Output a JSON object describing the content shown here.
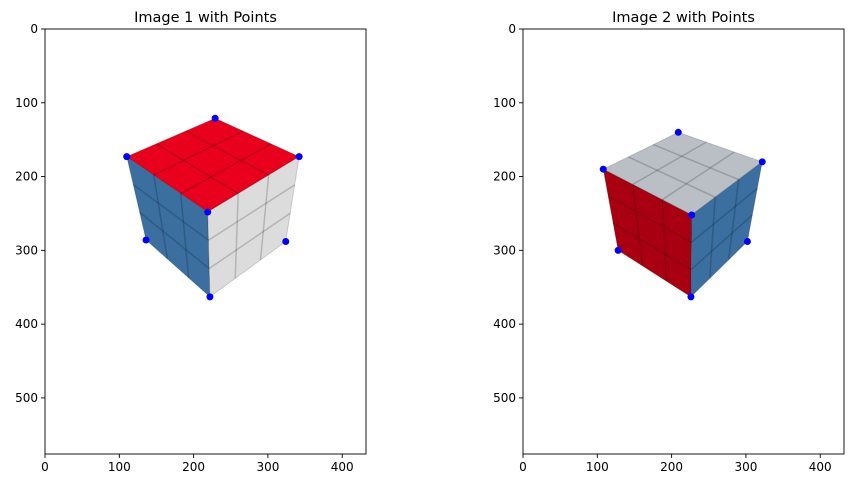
{
  "chart_data": [
    {
      "type": "scatter",
      "title": "Image 1 with Points",
      "xlim": [
        0,
        432
      ],
      "ylim": [
        576,
        0
      ],
      "y_inverted": true,
      "x_ticks": [
        0,
        100,
        200,
        300,
        400
      ],
      "y_ticks": [
        0,
        100,
        200,
        300,
        400,
        500
      ],
      "x_tick_labels": [
        "0",
        "100",
        "200",
        "300",
        "400"
      ],
      "y_tick_labels": [
        "0",
        "100",
        "200",
        "300",
        "400",
        "500"
      ],
      "grid": false,
      "image": "rubiks-cube-red-top",
      "point_color": "#0000ff",
      "points": [
        {
          "x": 229,
          "y": 121
        },
        {
          "x": 110,
          "y": 173
        },
        {
          "x": 342,
          "y": 173
        },
        {
          "x": 219,
          "y": 248
        },
        {
          "x": 136,
          "y": 286
        },
        {
          "x": 324,
          "y": 288
        },
        {
          "x": 222,
          "y": 363
        }
      ]
    },
    {
      "type": "scatter",
      "title": "Image 2 with Points",
      "xlim": [
        0,
        432
      ],
      "ylim": [
        576,
        0
      ],
      "y_inverted": true,
      "x_ticks": [
        0,
        100,
        200,
        300,
        400
      ],
      "y_ticks": [
        0,
        100,
        200,
        300,
        400,
        500
      ],
      "x_tick_labels": [
        "0",
        "100",
        "200",
        "300",
        "400"
      ],
      "y_tick_labels": [
        "0",
        "100",
        "200",
        "300",
        "400",
        "500"
      ],
      "grid": false,
      "image": "rubiks-cube-white-top",
      "point_color": "#0000ff",
      "points": [
        {
          "x": 209,
          "y": 140
        },
        {
          "x": 108,
          "y": 190
        },
        {
          "x": 322,
          "y": 180
        },
        {
          "x": 227,
          "y": 252
        },
        {
          "x": 128,
          "y": 300
        },
        {
          "x": 302,
          "y": 288
        },
        {
          "x": 226,
          "y": 363
        }
      ]
    }
  ],
  "colors": {
    "red_face": "#e8001c",
    "red_face_dark": "#a80010",
    "blue_face": "#3a6fa0",
    "white_face": "#dcdcdc",
    "white_face_shade": "#b9bfc4"
  }
}
